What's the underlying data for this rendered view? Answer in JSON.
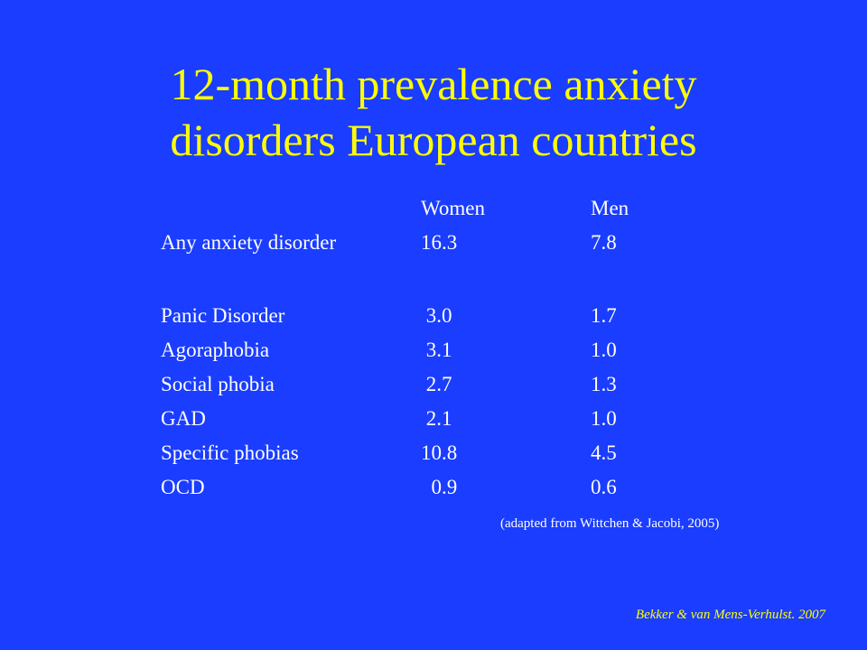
{
  "slide": {
    "title_line1": "12-month prevalence anxiety",
    "title_line2": "disorders European countries",
    "table": {
      "headers": {
        "label": "",
        "women": "Women",
        "men": "Men"
      },
      "rows": [
        {
          "label": "Any anxiety disorder",
          "women": "16.3",
          "men": "7.8"
        },
        {
          "label": "Panic Disorder",
          "women": " 3.0",
          "men": "1.7"
        },
        {
          "label": "Agoraphobia",
          "women": " 3.1",
          "men": "1.0"
        },
        {
          "label": "Social phobia",
          "women": " 2.7",
          "men": "1.3"
        },
        {
          "label": "GAD",
          "women": " 2.1",
          "men": "1.0"
        },
        {
          "label": "Specific phobias",
          "women": "10.8",
          "men": "4.5"
        },
        {
          "label": "OCD",
          "women": "  0.9",
          "men": "0.6"
        }
      ]
    },
    "source": "(adapted from Wittchen & Jacobi, 2005)",
    "credit": "Bekker  & van Mens-Verhulst. 2007"
  },
  "colors": {
    "background": "#1a3dff",
    "title": "#ffff00",
    "body_text": "#ffffff",
    "credit": "#ffff00"
  }
}
